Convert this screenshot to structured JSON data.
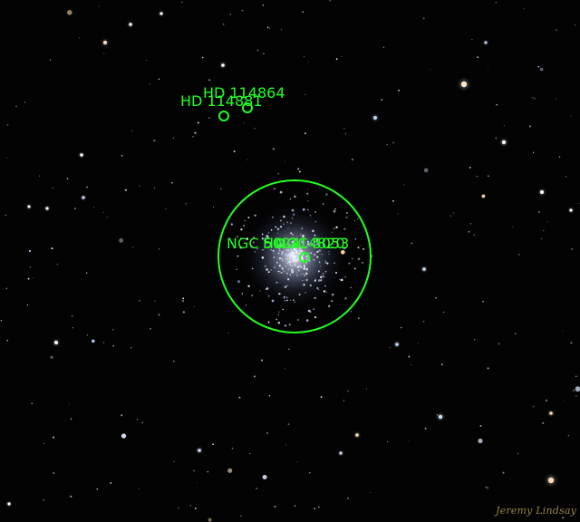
{
  "annotations": {
    "color": "#22ff22",
    "labels": [
      {
        "id": "hd114864",
        "text": "HD 114864"
      },
      {
        "id": "hd114881",
        "text": "HD 114881"
      },
      {
        "id": "ngc5053",
        "text": "NGC 5024"
      },
      {
        "id": "hd114820",
        "text": "HD 114820"
      },
      {
        "id": "ngc5024b",
        "text": "NGC 5053"
      }
    ]
  },
  "credit": {
    "text": "Jeremy Lindsay"
  }
}
